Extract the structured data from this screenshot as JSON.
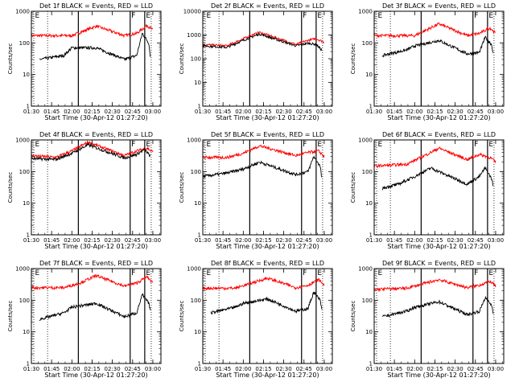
{
  "chart_data": [
    {
      "type": "line",
      "title": "Det 1f BLACK = Events, RED = LLD",
      "xlabel": "Start Time (30-Apr-12 01:27:20)",
      "ylabel": "Counts/sec",
      "yscale": "log",
      "ylim": [
        1,
        1000
      ],
      "xticks": [
        "01:30",
        "01:45",
        "02:00",
        "02:15",
        "02:30",
        "02:45",
        "03:00"
      ],
      "yticks": [
        "1",
        "10",
        "100",
        "1000"
      ],
      "markers": [
        {
          "label": "E",
          "style": "dotted"
        },
        {
          "label": "",
          "style": "dotted"
        },
        {
          "label": "",
          "style": "solid"
        },
        {
          "label": "F",
          "style": "solid"
        },
        {
          "label": "E",
          "style": "solid"
        },
        {
          "label": "",
          "style": "dotted"
        }
      ],
      "series": [
        {
          "color": "#ff0000",
          "values": [
            [
              1.5,
              170
            ],
            [
              2.0,
              170
            ],
            [
              2.3,
              340
            ],
            [
              2.65,
              170
            ],
            [
              2.8,
              200
            ],
            [
              2.93,
              360
            ],
            [
              3.0,
              260
            ]
          ]
        },
        {
          "color": "#000000",
          "values": [
            [
              1.6,
              30
            ],
            [
              1.9,
              40
            ],
            [
              2.0,
              70
            ],
            [
              2.3,
              70
            ],
            [
              2.65,
              30
            ],
            [
              2.8,
              40
            ],
            [
              2.87,
              200
            ],
            [
              2.95,
              100
            ],
            [
              2.97,
              35
            ]
          ]
        }
      ]
    },
    {
      "type": "line",
      "title": "Det 2f BLACK = Events, RED = LLD",
      "xlabel": "Start Time (30-Apr-12 01:27:20)",
      "ylabel": "Counts/sec",
      "yscale": "log",
      "ylim": [
        1,
        10000
      ],
      "xticks": [
        "01:30",
        "01:45",
        "02:00",
        "02:15",
        "02:30",
        "02:45",
        "03:00"
      ],
      "yticks": [
        "1",
        "10",
        "100",
        "1000",
        "10000"
      ],
      "markers": [
        {
          "label": "E",
          "style": "dotted"
        },
        {
          "label": "",
          "style": "dotted"
        },
        {
          "label": "",
          "style": "solid"
        },
        {
          "label": "F",
          "style": "solid"
        },
        {
          "label": "E",
          "style": "solid"
        },
        {
          "label": "",
          "style": "dotted"
        }
      ],
      "series": [
        {
          "color": "#ff0000",
          "values": [
            [
              1.5,
              400
            ],
            [
              1.8,
              350
            ],
            [
              2.0,
              700
            ],
            [
              2.2,
              1300
            ],
            [
              2.65,
              400
            ],
            [
              2.8,
              600
            ],
            [
              2.9,
              700
            ],
            [
              3.0,
              500
            ]
          ]
        },
        {
          "color": "#000000",
          "values": [
            [
              1.5,
              350
            ],
            [
              1.8,
              300
            ],
            [
              2.0,
              600
            ],
            [
              2.2,
              1100
            ],
            [
              2.65,
              350
            ],
            [
              2.8,
              450
            ],
            [
              2.9,
              400
            ],
            [
              2.97,
              230
            ]
          ]
        }
      ]
    },
    {
      "type": "line",
      "title": "Det 3f BLACK = Events, RED = LLD",
      "xlabel": "Start Time (30-Apr-12 01:27:20)",
      "ylabel": "Counts/sec",
      "yscale": "log",
      "ylim": [
        1,
        1000
      ],
      "xticks": [
        "01:30",
        "01:45",
        "02:00",
        "02:15",
        "02:30",
        "02:45",
        "03:00"
      ],
      "yticks": [
        "1",
        "10",
        "100",
        "1000"
      ],
      "markers": [
        {
          "label": "E",
          "style": "dotted"
        },
        {
          "label": "",
          "style": "dotted"
        },
        {
          "label": "",
          "style": "solid"
        },
        {
          "label": "F",
          "style": "solid"
        },
        {
          "label": "E",
          "style": "solid"
        },
        {
          "label": "",
          "style": "dotted"
        }
      ],
      "series": [
        {
          "color": "#ff0000",
          "values": [
            [
              1.5,
              170
            ],
            [
              2.0,
              170
            ],
            [
              2.3,
              400
            ],
            [
              2.65,
              170
            ],
            [
              2.8,
              200
            ],
            [
              2.93,
              300
            ],
            [
              3.0,
              200
            ]
          ]
        },
        {
          "color": "#000000",
          "values": [
            [
              1.6,
              40
            ],
            [
              1.9,
              60
            ],
            [
              2.0,
              80
            ],
            [
              2.3,
              120
            ],
            [
              2.65,
              45
            ],
            [
              2.8,
              50
            ],
            [
              2.87,
              150
            ],
            [
              2.95,
              90
            ],
            [
              2.97,
              45
            ]
          ]
        }
      ]
    },
    {
      "type": "line",
      "title": "Det 4f BLACK = Events, RED = LLD",
      "xlabel": "Start Time (30-Apr-12 01:27:20)",
      "ylabel": "Counts/sec",
      "yscale": "log",
      "ylim": [
        1,
        1000
      ],
      "xticks": [
        "01:30",
        "01:45",
        "02:00",
        "02:15",
        "02:30",
        "02:45",
        "03:00"
      ],
      "yticks": [
        "1",
        "10",
        "100",
        "1000"
      ],
      "markers": [
        {
          "label": "E",
          "style": "dotted"
        },
        {
          "label": "",
          "style": "dotted"
        },
        {
          "label": "",
          "style": "solid"
        },
        {
          "label": "F",
          "style": "solid"
        },
        {
          "label": "E",
          "style": "solid"
        },
        {
          "label": "",
          "style": "dotted"
        }
      ],
      "series": [
        {
          "color": "#ff0000",
          "values": [
            [
              1.5,
              320
            ],
            [
              1.8,
              280
            ],
            [
              2.0,
              450
            ],
            [
              2.2,
              850
            ],
            [
              2.65,
              320
            ],
            [
              2.8,
              450
            ],
            [
              2.93,
              550
            ],
            [
              3.0,
              420
            ]
          ]
        },
        {
          "color": "#000000",
          "values": [
            [
              1.5,
              260
            ],
            [
              1.8,
              240
            ],
            [
              2.0,
              380
            ],
            [
              2.2,
              700
            ],
            [
              2.65,
              270
            ],
            [
              2.8,
              350
            ],
            [
              2.9,
              500
            ],
            [
              2.97,
              300
            ]
          ]
        }
      ]
    },
    {
      "type": "line",
      "title": "Det 5f BLACK = Events, RED = LLD",
      "xlabel": "Start Time (30-Apr-12 01:27:20)",
      "ylabel": "Counts/sec",
      "yscale": "log",
      "ylim": [
        1,
        1000
      ],
      "xticks": [
        "01:30",
        "01:45",
        "02:00",
        "02:15",
        "02:30",
        "02:45",
        "03:00"
      ],
      "yticks": [
        "1",
        "10",
        "100",
        "1000"
      ],
      "markers": [
        {
          "label": "E",
          "style": "dotted"
        },
        {
          "label": "",
          "style": "dotted"
        },
        {
          "label": "",
          "style": "solid"
        },
        {
          "label": "F",
          "style": "solid"
        },
        {
          "label": "E",
          "style": "solid"
        },
        {
          "label": "",
          "style": "dotted"
        }
      ],
      "series": [
        {
          "color": "#ff0000",
          "values": [
            [
              1.5,
              280
            ],
            [
              1.8,
              280
            ],
            [
              2.0,
              380
            ],
            [
              2.2,
              650
            ],
            [
              2.65,
              320
            ],
            [
              2.8,
              400
            ],
            [
              2.93,
              450
            ],
            [
              3.0,
              300
            ]
          ]
        },
        {
          "color": "#000000",
          "values": [
            [
              1.5,
              70
            ],
            [
              1.8,
              90
            ],
            [
              2.0,
              120
            ],
            [
              2.2,
              200
            ],
            [
              2.65,
              80
            ],
            [
              2.8,
              100
            ],
            [
              2.87,
              300
            ],
            [
              2.95,
              150
            ],
            [
              2.97,
              60
            ]
          ]
        }
      ]
    },
    {
      "type": "line",
      "title": "Det 6f BLACK = Events, RED = LLD",
      "xlabel": "Start Time (30-Apr-12 01:27:20)",
      "ylabel": "Counts/sec",
      "yscale": "log",
      "ylim": [
        1,
        1000
      ],
      "xticks": [
        "01:30",
        "01:45",
        "02:00",
        "02:15",
        "02:30",
        "02:45",
        "03:00"
      ],
      "yticks": [
        "1",
        "10",
        "100",
        "1000"
      ],
      "markers": [
        {
          "label": "E",
          "style": "dotted"
        },
        {
          "label": "",
          "style": "dotted"
        },
        {
          "label": "",
          "style": "solid"
        },
        {
          "label": "F",
          "style": "solid"
        },
        {
          "label": "E",
          "style": "solid"
        },
        {
          "label": "",
          "style": "dotted"
        }
      ],
      "series": [
        {
          "color": "#ff0000",
          "values": [
            [
              1.5,
              150
            ],
            [
              1.9,
              170
            ],
            [
              2.1,
              300
            ],
            [
              2.3,
              550
            ],
            [
              2.65,
              240
            ],
            [
              2.8,
              350
            ],
            [
              2.93,
              280
            ],
            [
              3.0,
              200
            ]
          ]
        },
        {
          "color": "#000000",
          "values": [
            [
              1.6,
              30
            ],
            [
              1.8,
              40
            ],
            [
              2.0,
              70
            ],
            [
              2.2,
              130
            ],
            [
              2.65,
              40
            ],
            [
              2.8,
              70
            ],
            [
              2.87,
              130
            ],
            [
              2.95,
              60
            ],
            [
              2.97,
              35
            ]
          ]
        }
      ]
    },
    {
      "type": "line",
      "title": "Det 7f BLACK = Events, RED = LLD",
      "xlabel": "Start Time (30-Apr-12 01:27:20)",
      "ylabel": "Counts/sec",
      "yscale": "log",
      "ylim": [
        1,
        1000
      ],
      "xticks": [
        "01:30",
        "01:45",
        "02:00",
        "02:15",
        "02:30",
        "02:45",
        "03:00"
      ],
      "yticks": [
        "1",
        "10",
        "100",
        "1000"
      ],
      "markers": [
        {
          "label": "E",
          "style": "dotted"
        },
        {
          "label": "",
          "style": "dotted"
        },
        {
          "label": "",
          "style": "solid"
        },
        {
          "label": "F",
          "style": "solid"
        },
        {
          "label": "E",
          "style": "solid"
        },
        {
          "label": "",
          "style": "dotted"
        }
      ],
      "series": [
        {
          "color": "#ff0000",
          "values": [
            [
              1.5,
              250
            ],
            [
              1.9,
              250
            ],
            [
              2.1,
              350
            ],
            [
              2.3,
              600
            ],
            [
              2.65,
              280
            ],
            [
              2.8,
              350
            ],
            [
              2.93,
              550
            ],
            [
              3.0,
              350
            ]
          ]
        },
        {
          "color": "#000000",
          "values": [
            [
              1.6,
              25
            ],
            [
              1.9,
              40
            ],
            [
              2.0,
              60
            ],
            [
              2.3,
              80
            ],
            [
              2.65,
              30
            ],
            [
              2.8,
              40
            ],
            [
              2.87,
              150
            ],
            [
              2.95,
              80
            ],
            [
              2.97,
              50
            ]
          ]
        }
      ]
    },
    {
      "type": "line",
      "title": "Det 8f BLACK = Events, RED = LLD",
      "xlabel": "Start Time (30-Apr-12 01:27:20)",
      "ylabel": "Counts/sec",
      "yscale": "log",
      "ylim": [
        1,
        1000
      ],
      "xticks": [
        "01:30",
        "01:45",
        "02:00",
        "02:15",
        "02:30",
        "02:45",
        "03:00"
      ],
      "yticks": [
        "1",
        "10",
        "100",
        "1000"
      ],
      "markers": [
        {
          "label": "E",
          "style": "dotted"
        },
        {
          "label": "",
          "style": "dotted"
        },
        {
          "label": "",
          "style": "solid"
        },
        {
          "label": "F",
          "style": "solid"
        },
        {
          "label": "E",
          "style": "solid"
        },
        {
          "label": "",
          "style": "dotted"
        }
      ],
      "series": [
        {
          "color": "#ff0000",
          "values": [
            [
              1.5,
              240
            ],
            [
              1.9,
              240
            ],
            [
              2.1,
              350
            ],
            [
              2.3,
              500
            ],
            [
              2.65,
              250
            ],
            [
              2.8,
              300
            ],
            [
              2.93,
              450
            ],
            [
              3.0,
              300
            ]
          ]
        },
        {
          "color": "#000000",
          "values": [
            [
              1.6,
              40
            ],
            [
              1.9,
              60
            ],
            [
              2.0,
              80
            ],
            [
              2.3,
              110
            ],
            [
              2.65,
              45
            ],
            [
              2.8,
              55
            ],
            [
              2.87,
              180
            ],
            [
              2.95,
              100
            ],
            [
              2.97,
              50
            ]
          ]
        }
      ]
    },
    {
      "type": "line",
      "title": "Det 9f BLACK = Events, RED = LLD",
      "xlabel": "Start Time (30-Apr-12 01:27:20)",
      "ylabel": "Counts/sec",
      "yscale": "log",
      "ylim": [
        1,
        1000
      ],
      "xticks": [
        "01:30",
        "01:45",
        "02:00",
        "02:15",
        "02:30",
        "02:45",
        "03:00"
      ],
      "yticks": [
        "1",
        "10",
        "100",
        "1000"
      ],
      "markers": [
        {
          "label": "E",
          "style": "dotted"
        },
        {
          "label": "",
          "style": "dotted"
        },
        {
          "label": "",
          "style": "solid"
        },
        {
          "label": "F",
          "style": "solid"
        },
        {
          "label": "E",
          "style": "solid"
        },
        {
          "label": "",
          "style": "dotted"
        }
      ],
      "series": [
        {
          "color": "#ff0000",
          "values": [
            [
              1.5,
              220
            ],
            [
              1.9,
              240
            ],
            [
              2.1,
              330
            ],
            [
              2.3,
              450
            ],
            [
              2.65,
              250
            ],
            [
              2.8,
              300
            ],
            [
              2.93,
              400
            ],
            [
              3.0,
              280
            ]
          ]
        },
        {
          "color": "#000000",
          "values": [
            [
              1.6,
              30
            ],
            [
              1.9,
              45
            ],
            [
              2.0,
              60
            ],
            [
              2.3,
              90
            ],
            [
              2.65,
              35
            ],
            [
              2.8,
              45
            ],
            [
              2.87,
              120
            ],
            [
              2.95,
              70
            ],
            [
              2.97,
              40
            ]
          ]
        }
      ]
    }
  ]
}
